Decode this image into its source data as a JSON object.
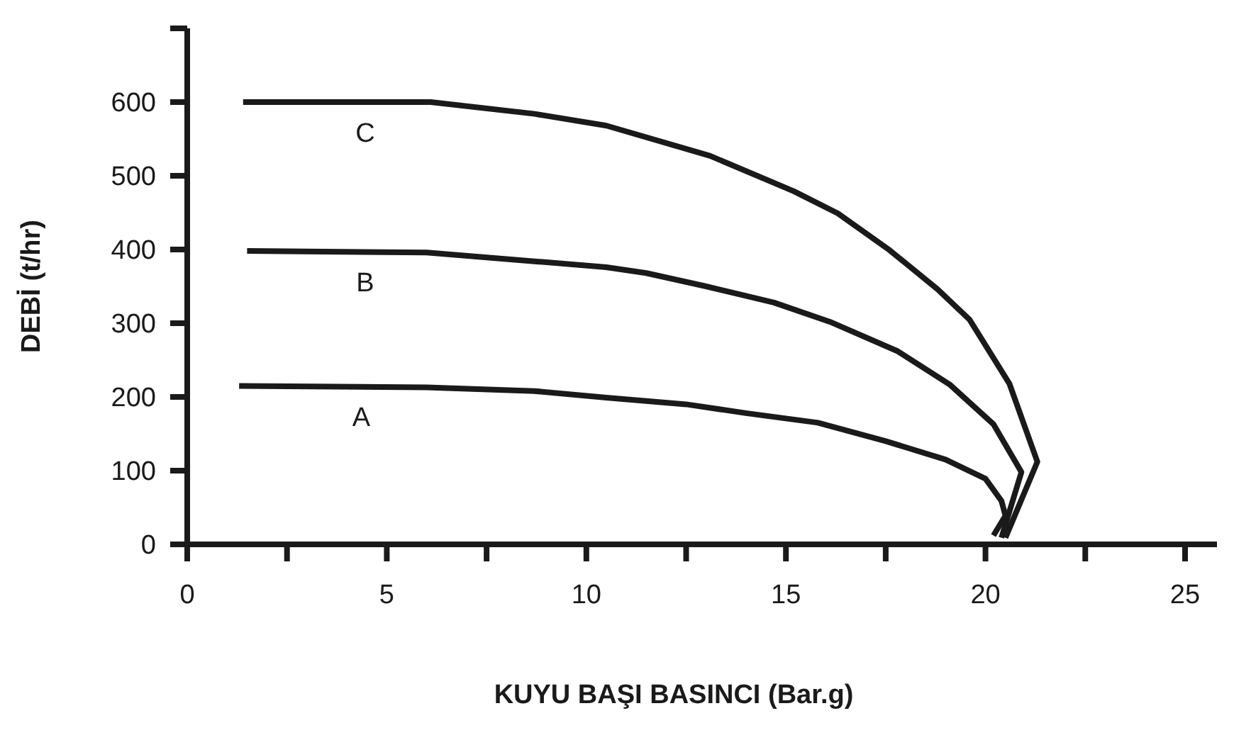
{
  "chart_data": {
    "type": "line",
    "xlabel": "KUYU BAŞI BASINCI (Bar.g)",
    "ylabel": "DEBİ (t/hr)",
    "xlim": [
      0,
      25.8
    ],
    "ylim": [
      0,
      700
    ],
    "xticks": [
      0,
      {
        "value": 2.5,
        "label": null
      },
      5,
      {
        "value": 7.5,
        "label": null
      },
      10,
      {
        "value": 12.5,
        "label": null
      },
      15,
      {
        "value": 17.5,
        "label": null
      },
      20,
      {
        "value": 22.5,
        "label": null
      },
      25
    ],
    "yticks": [
      0,
      100,
      200,
      300,
      400,
      500,
      600,
      {
        "value": 700,
        "label": null
      }
    ],
    "marker": "none",
    "line_style": "solid",
    "series": [
      {
        "name": "A",
        "color": "#1a1a1a",
        "x": [
          1.3,
          6.0,
          8.7,
          10.5,
          12.5,
          14.0,
          15.8,
          17.5,
          19.0,
          20.0,
          20.4,
          20.5,
          20.2
        ],
        "values": [
          215,
          213,
          208,
          199,
          190,
          178,
          165,
          140,
          115,
          89,
          59,
          39,
          12
        ]
      },
      {
        "name": "B",
        "color": "#1a1a1a",
        "x": [
          1.5,
          6.0,
          8.7,
          10.5,
          11.5,
          13.0,
          14.7,
          16.1,
          17.8,
          19.1,
          20.2,
          20.9,
          20.4
        ],
        "values": [
          398,
          396,
          384,
          376,
          368,
          350,
          328,
          302,
          262,
          217,
          163,
          98,
          9
        ]
      },
      {
        "name": "C",
        "color": "#1a1a1a",
        "x": [
          1.4,
          6.1,
          8.7,
          10.5,
          13.1,
          15.2,
          16.3,
          17.6,
          18.8,
          19.6,
          20.6,
          21.3,
          20.5
        ],
        "values": [
          600,
          600,
          584,
          568,
          527,
          479,
          449,
          399,
          346,
          305,
          218,
          112,
          9
        ]
      }
    ]
  }
}
